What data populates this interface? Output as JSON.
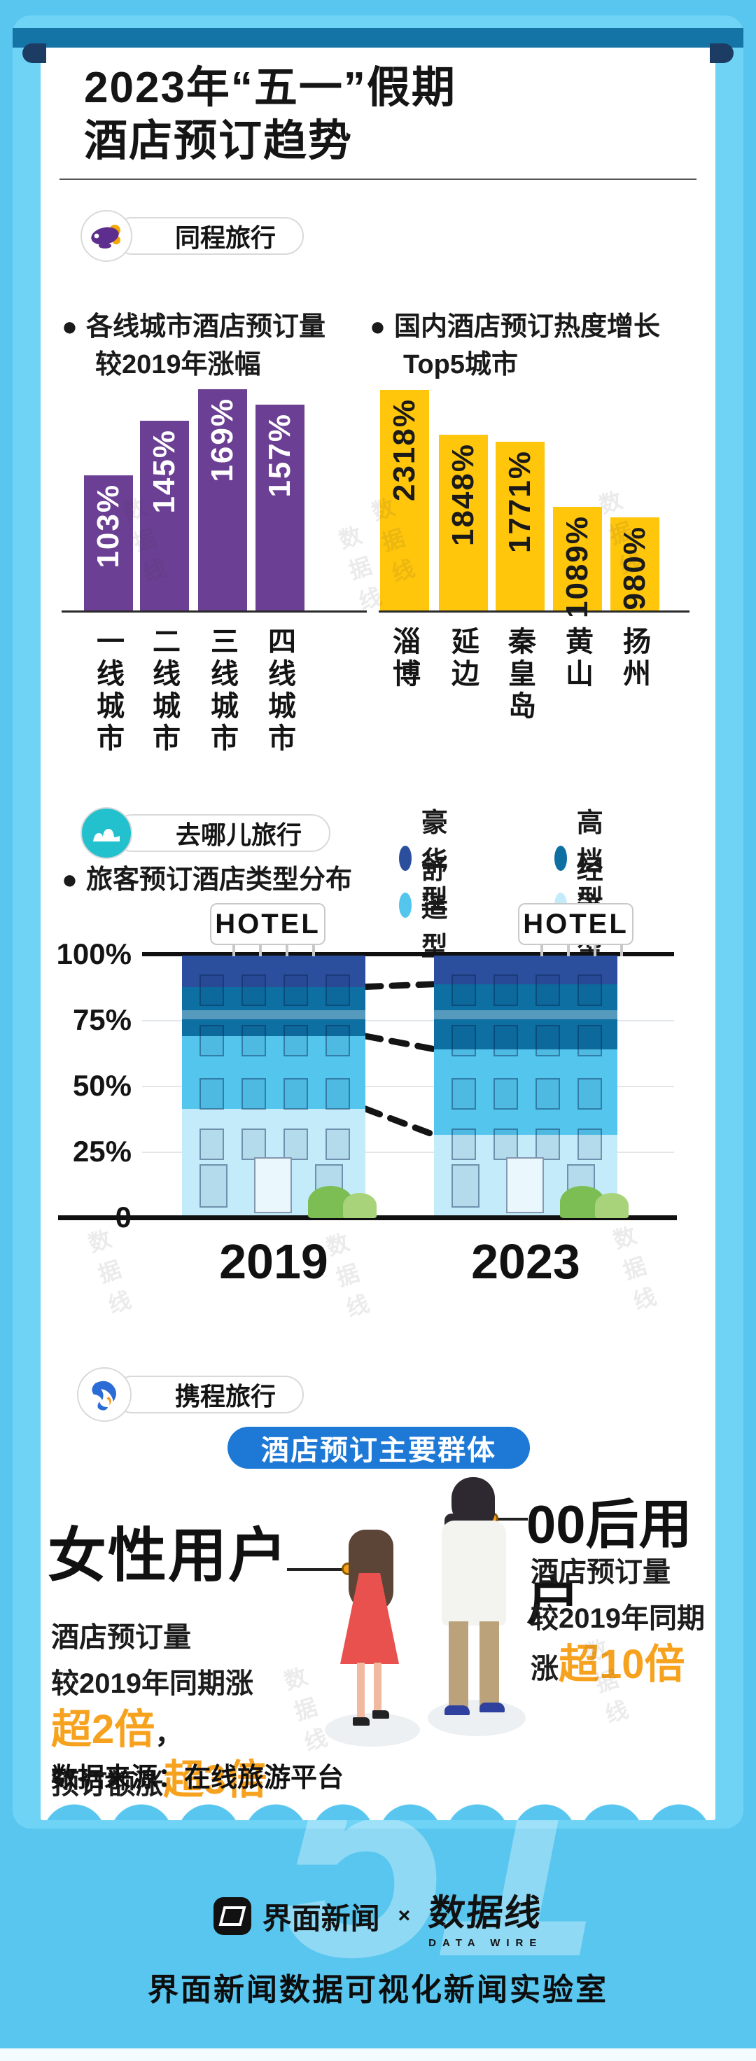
{
  "header": {
    "title_line1": "2023年“五一”假期",
    "title_line2": "酒店预订趋势"
  },
  "bullet_marker": "●",
  "tongcheng": {
    "brand": "同程旅行",
    "bullet_left": [
      "各线城市酒店预订量",
      "较2019年涨幅"
    ],
    "bullet_right": [
      "国内酒店预订热度增长",
      "Top5城市"
    ]
  },
  "qunar": {
    "brand": "去哪儿旅行",
    "bullet": "旅客预订酒店类型分布",
    "hotel_sign": "HOTEL"
  },
  "ctrip": {
    "brand": "携程旅行",
    "pill": "酒店预订主要群体",
    "female": {
      "title": "女性用户",
      "line1": "酒店预订量",
      "line2": "较2019年同期涨",
      "highlight1": "超2倍",
      "comma": "，",
      "line3_prefix": "预订额涨",
      "highlight2": "超3倍"
    },
    "gen00": {
      "title": "00后用户",
      "line1": "酒店预订量",
      "line2": "较2019年同期",
      "line3_prefix": "涨",
      "highlight": "超10倍"
    },
    "source": "数据来源：在线旅游平台"
  },
  "footer": {
    "jiemian": "界面新闻",
    "cross": "×",
    "datawire": "数据线",
    "datawire_sub": "DATA WIRE",
    "tagline": "界面新闻数据可视化新闻实验室",
    "watermark": "51"
  },
  "stamp": "数据线",
  "chart_data": [
    {
      "type": "bar",
      "title": "各线城市酒店预订量较2019年涨幅",
      "unit": "%",
      "categories": [
        "一线城市",
        "二线城市",
        "三线城市",
        "四线城市"
      ],
      "values": [
        103,
        145,
        169,
        157
      ],
      "bar_color": "#6B3F93",
      "value_color": "#FFFFFF",
      "ylim": [
        0,
        180
      ],
      "grid": false
    },
    {
      "type": "bar",
      "title": "国内酒店预订热度增长Top5城市",
      "unit": "%",
      "categories": [
        "淄博",
        "延边",
        "秦皇岛",
        "黄山",
        "扬州"
      ],
      "values": [
        2318,
        1848,
        1771,
        1089,
        980
      ],
      "bar_color": "#FFC60B",
      "value_color": "#1A1A1A",
      "ylim": [
        0,
        2500
      ],
      "grid": false
    },
    {
      "type": "stacked-bar",
      "title": "旅客预订酒店类型分布",
      "categories": [
        "2019",
        "2023"
      ],
      "series": [
        {
          "name": "豪华型",
          "color": "#2B4E9D",
          "values": [
            12,
            11
          ]
        },
        {
          "name": "高档型",
          "color": "#0E6FA3",
          "values": [
            19,
            25
          ]
        },
        {
          "name": "舒适型",
          "color": "#54C6EE",
          "values": [
            28,
            33
          ]
        },
        {
          "name": "经济型",
          "color": "#C3EBFA",
          "values": [
            41,
            31
          ]
        }
      ],
      "y_ticks": [
        "100%",
        "75%",
        "50%",
        "25%",
        "0"
      ],
      "ylim": [
        0,
        100
      ],
      "ylabel": "",
      "xlabel": "",
      "legend_position": "top-right",
      "grid": true
    }
  ]
}
